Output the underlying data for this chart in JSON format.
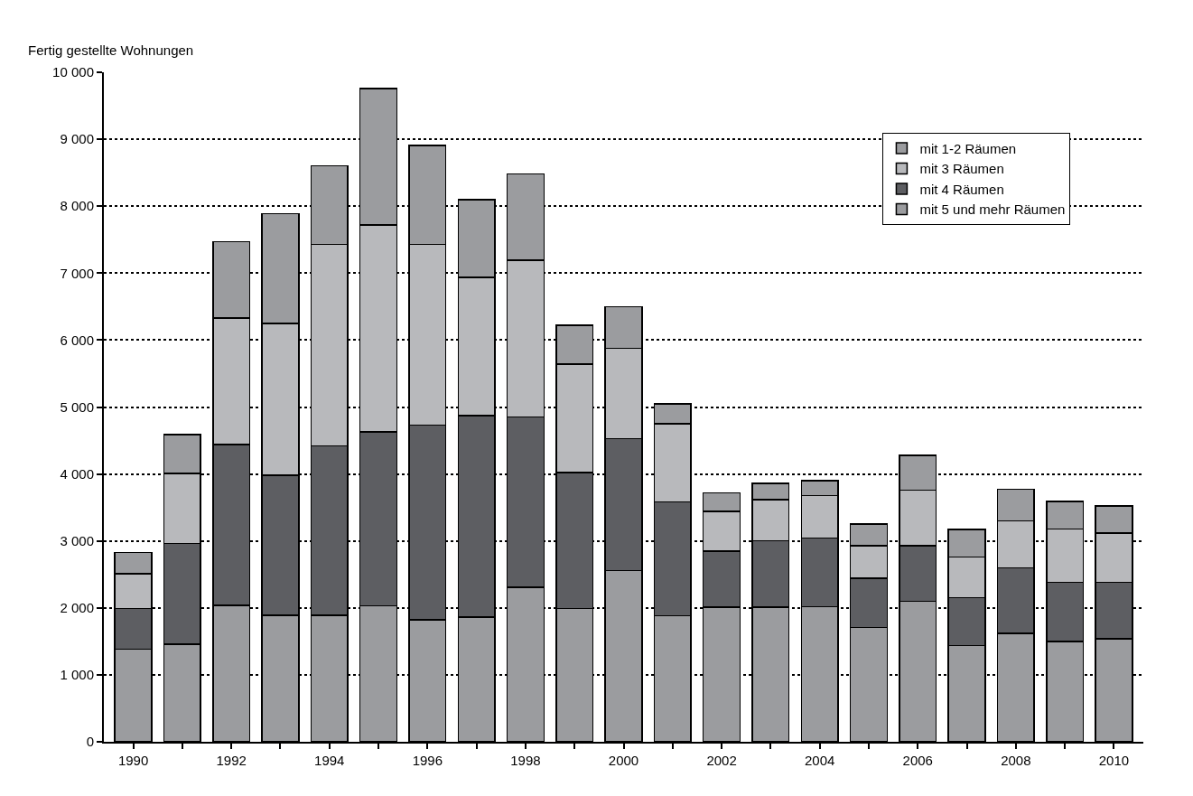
{
  "chart_data": {
    "type": "bar",
    "stacked": true,
    "ylabel": "Fertig gestellte Wohnungen",
    "x": [
      1990,
      1991,
      1992,
      1993,
      1994,
      1995,
      1996,
      1997,
      1998,
      1999,
      2000,
      2001,
      2002,
      2003,
      2004,
      2005,
      2006,
      2007,
      2008,
      2009,
      2010
    ],
    "series": [
      {
        "name": "mit 5 und mehr Räumen",
        "color": "#9b9c9f",
        "values": [
          1380,
          1460,
          2040,
          1890,
          1890,
          2030,
          1820,
          1860,
          2310,
          1990,
          2560,
          1880,
          2010,
          2010,
          2020,
          1710,
          2100,
          1440,
          1620,
          1500,
          1540
        ]
      },
      {
        "name": "mit 4 Räumen",
        "color": "#5d5e62",
        "values": [
          610,
          1500,
          2400,
          2090,
          2530,
          2600,
          2910,
          3010,
          2540,
          2030,
          1970,
          1700,
          840,
          990,
          1020,
          730,
          830,
          710,
          980,
          880,
          840
        ]
      },
      {
        "name": "mit 3 Räumen",
        "color": "#b8b9bc",
        "values": [
          520,
          1050,
          1890,
          2270,
          3010,
          3090,
          2700,
          2070,
          2340,
          1620,
          1350,
          1170,
          590,
          620,
          640,
          490,
          830,
          610,
          700,
          800,
          740
        ]
      },
      {
        "name": "mit 1-2 Räumen",
        "color": "#9b9c9f",
        "values": [
          320,
          580,
          1140,
          1640,
          1170,
          2040,
          1480,
          1160,
          1290,
          580,
          620,
          300,
          280,
          240,
          220,
          320,
          520,
          410,
          470,
          410,
          400
        ]
      }
    ],
    "xlim": [
      1989.4,
      2010.6
    ],
    "xticks": [
      1990,
      {
        "value": 1991,
        "label": null
      },
      1992,
      {
        "value": 1993,
        "label": null
      },
      1994,
      {
        "value": 1995,
        "label": null
      },
      1996,
      {
        "value": 1997,
        "label": null
      },
      1998,
      {
        "value": 1999,
        "label": null
      },
      2000,
      {
        "value": 2001,
        "label": null
      },
      2002,
      {
        "value": 2003,
        "label": null
      },
      2004,
      {
        "value": 2005,
        "label": null
      },
      2006,
      {
        "value": 2007,
        "label": null
      },
      2008,
      {
        "value": 2009,
        "label": null
      },
      2010
    ],
    "ylim": [
      0,
      10000
    ],
    "yticks": [
      {
        "value": 0,
        "label": "0"
      },
      {
        "value": 1000,
        "label": "1 000"
      },
      {
        "value": 2000,
        "label": "2 000"
      },
      {
        "value": 3000,
        "label": "3 000"
      },
      {
        "value": 4000,
        "label": "4 000"
      },
      {
        "value": 5000,
        "label": "5 000"
      },
      {
        "value": 6000,
        "label": "6 000"
      },
      {
        "value": 7000,
        "label": "7 000"
      },
      {
        "value": 8000,
        "label": "8 000"
      },
      {
        "value": 9000,
        "label": "9 000"
      },
      {
        "value": 10000,
        "label": "10 000"
      }
    ],
    "grid": "y",
    "legend": "top right"
  }
}
